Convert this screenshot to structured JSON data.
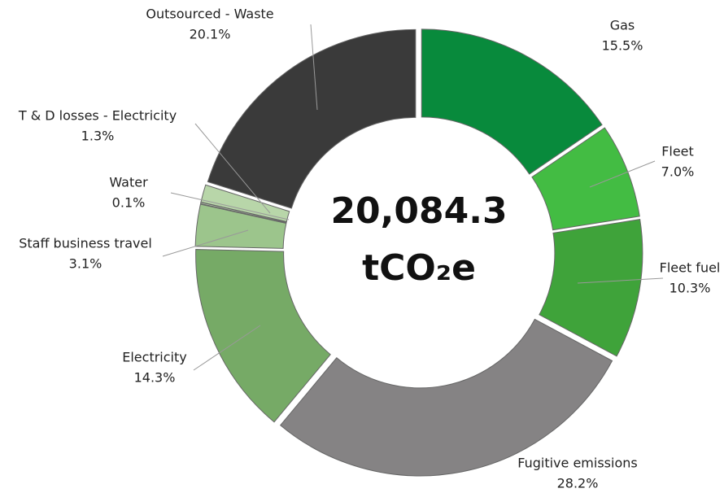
{
  "chart_data": {
    "type": "donut",
    "center_value": "20,084.3",
    "center_unit": "tCO₂e",
    "categories": [
      "Gas",
      "Fleet",
      "Fleet fuel",
      "Fugitive emissions",
      "Electricity",
      "Staff business travel",
      "Water",
      "T & D losses - Electricity",
      "Outsourced - Waste"
    ],
    "values": [
      15.5,
      7.0,
      10.3,
      28.2,
      14.3,
      3.1,
      0.1,
      1.3,
      20.1
    ],
    "value_labels": [
      "15.5%",
      "7.0%",
      "10.3%",
      "28.2%",
      "14.3%",
      "3.1%",
      "0.1%",
      "1.3%",
      "20.1%"
    ],
    "colors": [
      "#088a3c",
      "#43bc43",
      "#3fa33a",
      "#858384",
      "#76aa66",
      "#9cc58c",
      "#c4dcba",
      "#b8d6a9",
      "#3a3a3a"
    ]
  }
}
